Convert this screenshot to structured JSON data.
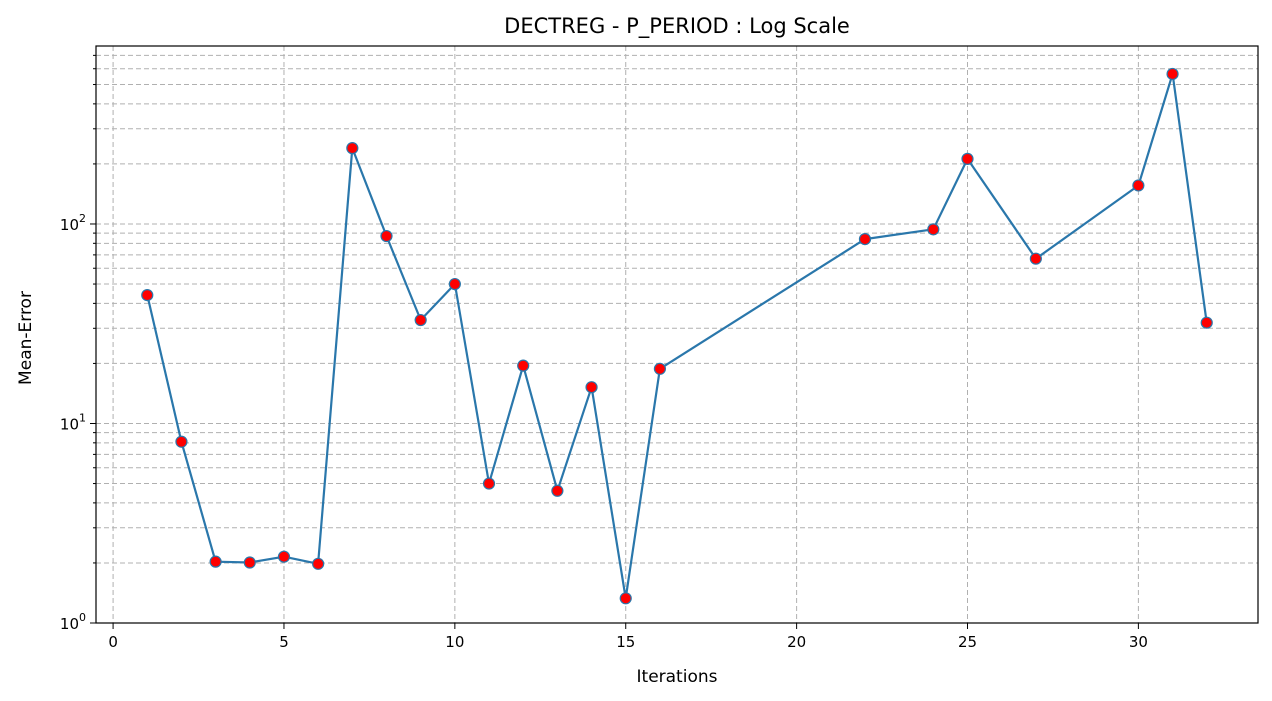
{
  "chart_data": {
    "type": "line",
    "title": "DECTREG - P_PERIOD : Log Scale",
    "xlabel": "Iterations",
    "ylabel": "Mean-Error",
    "xlim": [
      -0.5,
      33.5
    ],
    "ylim": [
      1,
      780
    ],
    "yscale": "log",
    "grid": true,
    "x_ticks": [
      0,
      5,
      10,
      15,
      20,
      25,
      30
    ],
    "y_ticks": [
      {
        "value": 1,
        "base": "10",
        "exp": "0"
      },
      {
        "value": 10,
        "base": "10",
        "exp": "1"
      },
      {
        "value": 100,
        "base": "10",
        "exp": "2"
      }
    ],
    "colors": {
      "line": "#2a77ab",
      "marker_face": "#ff0000",
      "marker_edge": "#2a77ab"
    },
    "series": [
      {
        "x": [
          1,
          2,
          3,
          4,
          5,
          6,
          7,
          8,
          9,
          10,
          11,
          12,
          13,
          14,
          15,
          16,
          22,
          24,
          25,
          27,
          30,
          31,
          32
        ],
        "values": [
          44,
          8.1,
          2.03,
          2.01,
          2.15,
          1.98,
          240,
          87,
          33,
          50,
          5.0,
          19.5,
          4.6,
          15.2,
          1.33,
          18.8,
          84,
          94,
          212,
          67,
          156,
          565,
          32
        ]
      }
    ]
  }
}
